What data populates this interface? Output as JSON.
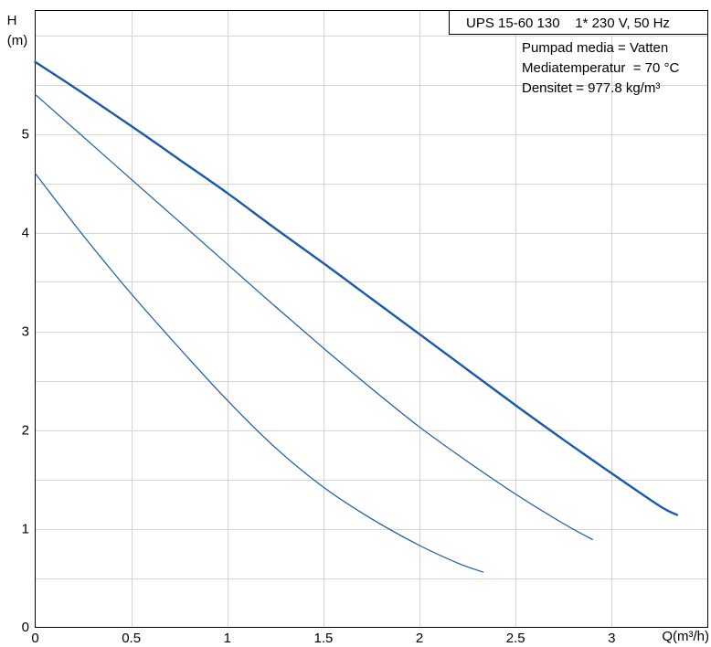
{
  "chart_data": {
    "type": "line",
    "title": "UPS 15-60 130    1* 230 V, 50 Hz",
    "info_lines": [
      "Pumpad media = Vatten",
      "Mediatemperatur  = 70 °C",
      "Densitet = 977.8 kg/m³"
    ],
    "ylabel_line1": "H",
    "ylabel_line2": "(m)",
    "xlabel": "Q(m³/h)",
    "xlim": [
      0,
      3.5
    ],
    "ylim": [
      0,
      6.25
    ],
    "x_ticks": [
      0,
      0.5,
      1,
      1.5,
      2,
      2.5,
      3
    ],
    "x_tick_labels": [
      "0",
      "0.5",
      "1",
      "1.5",
      "2",
      "2.5",
      "3"
    ],
    "y_ticks": [
      0,
      1,
      2,
      3,
      4,
      5
    ],
    "y_tick_labels": [
      "0",
      "1",
      "2",
      "3",
      "4",
      "5"
    ],
    "grid": true,
    "line_color": "#1a5aa6",
    "series": [
      {
        "speed": 3,
        "emphasis": true,
        "x": [
          0,
          0.25,
          0.5,
          0.75,
          1.0,
          1.25,
          1.5,
          1.75,
          2.0,
          2.25,
          2.5,
          2.75,
          3.0,
          3.25,
          3.34
        ],
        "y": [
          5.73,
          5.41,
          5.08,
          4.74,
          4.4,
          4.04,
          3.69,
          3.33,
          2.97,
          2.61,
          2.25,
          1.9,
          1.56,
          1.23,
          1.14
        ]
      },
      {
        "speed": 2,
        "emphasis": false,
        "x": [
          0,
          0.25,
          0.5,
          0.75,
          1.0,
          1.25,
          1.5,
          1.75,
          2.0,
          2.25,
          2.5,
          2.75,
          2.9
        ],
        "y": [
          5.4,
          4.97,
          4.54,
          4.11,
          3.68,
          3.25,
          2.83,
          2.42,
          2.03,
          1.68,
          1.35,
          1.05,
          0.89
        ]
      },
      {
        "speed": 1,
        "emphasis": false,
        "x": [
          0,
          0.25,
          0.5,
          0.75,
          1.0,
          1.25,
          1.5,
          1.75,
          2.0,
          2.2,
          2.33
        ],
        "y": [
          4.6,
          3.97,
          3.38,
          2.83,
          2.3,
          1.82,
          1.42,
          1.1,
          0.83,
          0.65,
          0.56
        ]
      }
    ]
  }
}
